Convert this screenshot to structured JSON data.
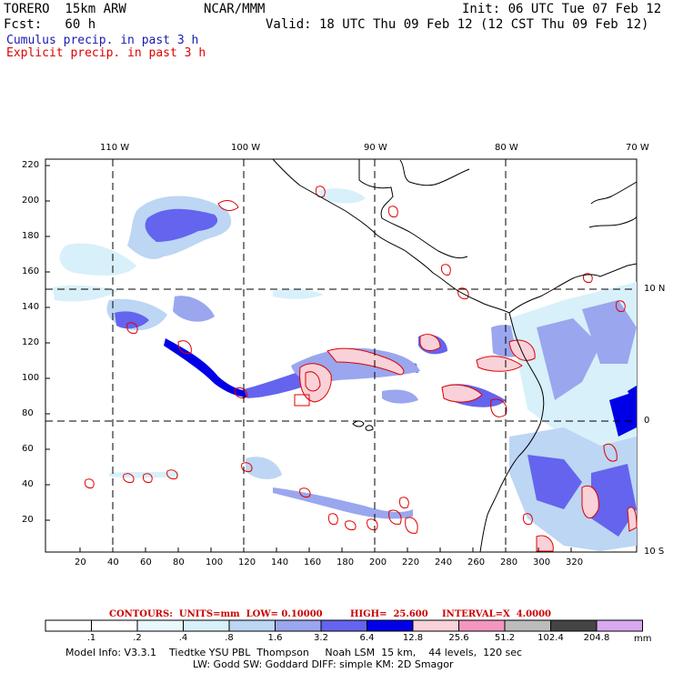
{
  "header": {
    "model": "TORERO  15km ARW",
    "center": "NCAR/MMM",
    "init": "Init: 06 UTC Tue 07 Feb 12",
    "fcst": "Fcst:   60 h",
    "valid": "Valid: 18 UTC Thu 09 Feb 12 (12 CST Thu 09 Feb 12)"
  },
  "legend": {
    "cumulus": "Cumulus precip. in past 3 h",
    "explicit": "Explicit precip. in past 3 h",
    "cumulus_color": "#1a1ab0",
    "explicit_color": "#e00000"
  },
  "map": {
    "lon_labels": [
      "110 W",
      "100 W",
      "90 W",
      "80 W",
      "70 W"
    ],
    "lat_labels": [
      "10 N",
      "0",
      "10 S"
    ],
    "y_ticks": [
      "220",
      "200",
      "180",
      "160",
      "140",
      "120",
      "100",
      "80",
      "60",
      "40",
      "20"
    ],
    "x_ticks": [
      "20",
      "40",
      "60",
      "80",
      "100",
      "120",
      "140",
      "160",
      "180",
      "200",
      "220",
      "240",
      "260",
      "280",
      "300",
      "320"
    ]
  },
  "contours": {
    "units_label": "CONTOURS:  UNITS=mm  LOW= 0.10000",
    "high_label": "HIGH=  25.600",
    "interval_label": "INTERVAL=X  4.0000"
  },
  "colorbar": {
    "labels": [
      ".1",
      ".2",
      ".4",
      ".8",
      "1.6",
      "3.2",
      "6.4",
      "12.8",
      "25.6",
      "51.2",
      "102.4",
      "204.8"
    ],
    "unit": "mm",
    "colors": [
      "#ffffff",
      "#ffffff",
      "#e8f8fc",
      "#d8f0fa",
      "#bcd6f4",
      "#9aa6ee",
      "#6464ee",
      "#0000e6",
      "#f8d2d8",
      "#f496c0",
      "#bcbcbc",
      "#444444",
      "#d8a8f0"
    ]
  },
  "footer": {
    "line1": "Model Info: V3.3.1    Tiedtke YSU PBL  Thompson     Noah LSM  15 km,    44 levels,  120 sec",
    "line2": "LW: Godd SW: Goddard DIFF: simple KM: 2D Smagor"
  }
}
